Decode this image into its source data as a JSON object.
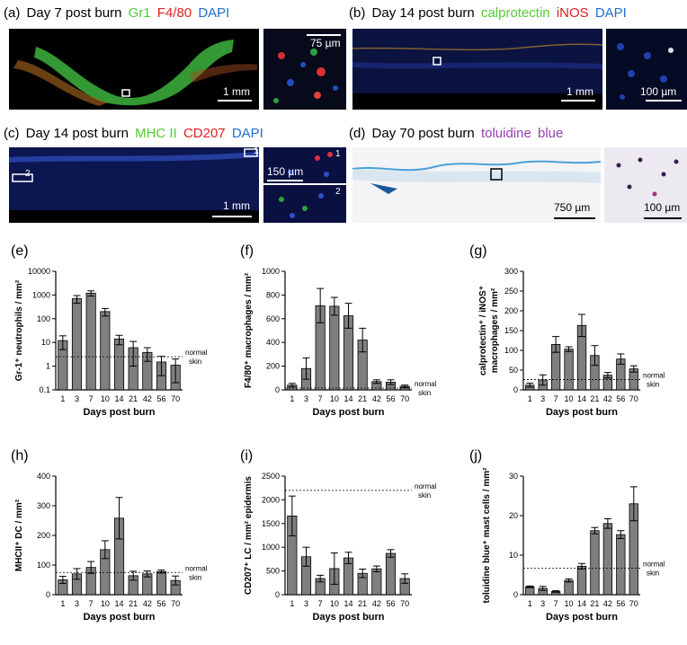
{
  "panels": {
    "a": {
      "letter": "(a)",
      "title": "Day 7 post burn",
      "stains": [
        {
          "text": "Gr1",
          "color": "#55cc33"
        },
        {
          "text": "F4/80",
          "color": "#e02020"
        },
        {
          "text": "DAPI",
          "color": "#1f6fd0"
        }
      ],
      "scale_main": "1 mm",
      "scale_inset": "75 µm"
    },
    "b": {
      "letter": "(b)",
      "title": "Day 14 post burn",
      "stains": [
        {
          "text": "calprotectin",
          "color": "#55cc33"
        },
        {
          "text": "iNOS",
          "color": "#e02020"
        },
        {
          "text": "DAPI",
          "color": "#1f6fd0"
        }
      ],
      "scale_main": "1 mm",
      "scale_inset": "100 µm"
    },
    "c": {
      "letter": "(c)",
      "title": "Day 14 post burn",
      "stains": [
        {
          "text": "MHC II",
          "color": "#55cc33"
        },
        {
          "text": "CD207",
          "color": "#e02020"
        },
        {
          "text": "DAPI",
          "color": "#1f6fd0"
        }
      ],
      "scale_main": "1 mm",
      "scale_inset": "150 µm",
      "inset1": "1",
      "inset2": "2",
      "box2": "2",
      "box1": "1"
    },
    "d": {
      "letter": "(d)",
      "title": "Day 70 post burn",
      "stains": [
        {
          "text": "toluidine",
          "color": "#9a3fb0"
        },
        {
          "text": "blue",
          "color": "#9a3fb0"
        }
      ],
      "scale_main": "750 µm",
      "scale_inset": "100 µm"
    }
  },
  "colors": {
    "bar": "#7f7f7f",
    "axis": "#000000"
  },
  "chart_data": [
    {
      "id": "e",
      "letter": "(e)",
      "type": "bar",
      "scale": "log",
      "ylabel": "Gr-1⁺ neutrophils / mm²",
      "xlabel": "Days post burn",
      "categories": [
        "1",
        "3",
        "7",
        "10",
        "14",
        "21",
        "42",
        "56",
        "70"
      ],
      "values": [
        12,
        700,
        1200,
        200,
        14,
        6,
        3.8,
        1.5,
        1.1
      ],
      "err": [
        7,
        250,
        300,
        70,
        6,
        5,
        2.2,
        1.1,
        0.9
      ],
      "yticks": [
        0.1,
        1,
        10,
        100,
        1000,
        10000
      ],
      "ytick_labels": [
        "0.1",
        "1",
        "10",
        "100",
        "1000",
        "10000"
      ],
      "ylim": [
        0.1,
        10000
      ],
      "ref": 2.5,
      "ref_label": [
        "normal",
        "skin"
      ]
    },
    {
      "id": "f",
      "letter": "(f)",
      "type": "bar",
      "scale": "linear",
      "ylabel": "F4/80⁺ macrophages / mm²",
      "xlabel": "Days post burn",
      "categories": [
        "1",
        "3",
        "7",
        "10",
        "14",
        "21",
        "42",
        "56",
        "70"
      ],
      "values": [
        40,
        180,
        710,
        705,
        625,
        420,
        70,
        65,
        30
      ],
      "err": [
        15,
        90,
        145,
        75,
        105,
        100,
        15,
        20,
        10
      ],
      "yticks": [
        0,
        200,
        400,
        600,
        800,
        1000
      ],
      "ytick_labels": [
        "0",
        "200",
        "400",
        "600",
        "800",
        "1000"
      ],
      "ylim": [
        0,
        1000
      ],
      "ref": 15,
      "ref_label": [
        "normal",
        "skin"
      ]
    },
    {
      "id": "g",
      "letter": "(g)",
      "type": "bar",
      "scale": "linear",
      "ylabel": [
        "calprotectin⁺ / iNOS⁺",
        "macrophages / mm²"
      ],
      "xlabel": "Days post burn",
      "categories": [
        "1",
        "3",
        "7",
        "10",
        "14",
        "21",
        "42",
        "56",
        "70"
      ],
      "values": [
        12,
        25,
        115,
        103,
        163,
        87,
        37,
        78,
        53
      ],
      "err": [
        5,
        13,
        20,
        6,
        28,
        25,
        7,
        13,
        8
      ],
      "yticks": [
        0,
        50,
        100,
        150,
        200,
        250,
        300
      ],
      "ytick_labels": [
        "0",
        "50",
        "100",
        "150",
        "200",
        "250",
        "300"
      ],
      "ylim": [
        0,
        300
      ],
      "ref": 26,
      "ref_label": [
        "normal",
        "skin"
      ]
    },
    {
      "id": "h",
      "letter": "(h)",
      "type": "bar",
      "scale": "linear",
      "ylabel": "MHCII⁺ DC / mm²",
      "xlabel": "Days post burn",
      "categories": [
        "1",
        "3",
        "7",
        "10",
        "14",
        "21",
        "42",
        "56",
        "70"
      ],
      "values": [
        50,
        70,
        92,
        152,
        258,
        64,
        70,
        78,
        48
      ],
      "err": [
        12,
        18,
        20,
        30,
        70,
        15,
        10,
        5,
        15
      ],
      "yticks": [
        0,
        100,
        200,
        300,
        400
      ],
      "ytick_labels": [
        "0",
        "100",
        "200",
        "300",
        "400"
      ],
      "ylim": [
        0,
        400
      ],
      "ref": 75,
      "ref_label": [
        "normal",
        "skin"
      ]
    },
    {
      "id": "i",
      "letter": "(i)",
      "type": "bar",
      "scale": "linear",
      "ylabel": "CD207⁺ LC / mm² epidermis",
      "xlabel": "Days post burn",
      "categories": [
        "1",
        "3",
        "7",
        "10",
        "14",
        "21",
        "42",
        "56",
        "70"
      ],
      "values": [
        1660,
        800,
        340,
        550,
        775,
        450,
        545,
        870,
        340
      ],
      "err": [
        420,
        200,
        70,
        330,
        120,
        90,
        60,
        80,
        100
      ],
      "yticks": [
        0,
        500,
        1000,
        1500,
        2000,
        2500
      ],
      "ytick_labels": [
        "0",
        "500",
        "1000",
        "1500",
        "2000",
        "2500"
      ],
      "ylim": [
        0,
        2500
      ],
      "ref": 2200,
      "ref_label": [
        "normal",
        "skin"
      ]
    },
    {
      "id": "j",
      "letter": "(j)",
      "type": "bar",
      "scale": "linear",
      "ylabel": "toluidine blue⁺ mast cells / mm²",
      "xlabel": "Days post burn",
      "categories": [
        "1",
        "3",
        "7",
        "10",
        "14",
        "21",
        "42",
        "56",
        "70"
      ],
      "values": [
        2,
        1.6,
        0.8,
        3.6,
        7.2,
        16.2,
        18,
        15.2,
        23
      ],
      "err": [
        0.2,
        0.5,
        0.2,
        0.4,
        0.7,
        0.8,
        1.2,
        1,
        4.3
      ],
      "yticks": [
        0,
        10,
        20,
        30
      ],
      "ytick_labels": [
        "0",
        "10",
        "20",
        "30"
      ],
      "ylim": [
        0,
        30
      ],
      "ref": 6.7,
      "ref_label": [
        "normal",
        "skin"
      ]
    }
  ]
}
